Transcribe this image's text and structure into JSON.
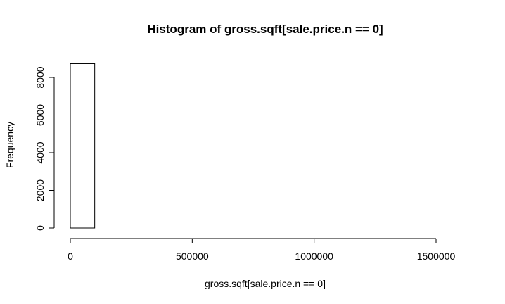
{
  "chart_data": {
    "type": "bar",
    "title": "Histogram of gross.sqft[sale.price.n == 0]",
    "xlabel": "gross.sqft[sale.price.n == 0]",
    "ylabel": "Frequency",
    "xlim": [
      0,
      1600000
    ],
    "ylim": [
      0,
      8000
    ],
    "x_ticks": [
      0,
      500000,
      1000000,
      1500000
    ],
    "x_tick_labels": [
      "0",
      "500000",
      "1000000",
      "1500000"
    ],
    "y_ticks": [
      0,
      2000,
      4000,
      6000,
      8000
    ],
    "y_tick_labels": [
      "0",
      "2000",
      "4000",
      "6000",
      "8000"
    ],
    "bins": [
      {
        "x0": 0,
        "x1": 100000,
        "value": 8730
      },
      {
        "x0": 100000,
        "x1": 200000,
        "value": 0
      },
      {
        "x0": 200000,
        "x1": 300000,
        "value": 0
      },
      {
        "x0": 300000,
        "x1": 400000,
        "value": 0
      },
      {
        "x0": 400000,
        "x1": 500000,
        "value": 0
      },
      {
        "x0": 500000,
        "x1": 600000,
        "value": 0
      },
      {
        "x0": 600000,
        "x1": 700000,
        "value": 0
      },
      {
        "x0": 700000,
        "x1": 800000,
        "value": 0
      },
      {
        "x0": 800000,
        "x1": 900000,
        "value": 0
      },
      {
        "x0": 900000,
        "x1": 1000000,
        "value": 0
      },
      {
        "x0": 1000000,
        "x1": 1100000,
        "value": 0
      },
      {
        "x0": 1100000,
        "x1": 1200000,
        "value": 0
      },
      {
        "x0": 1200000,
        "x1": 1300000,
        "value": 0
      },
      {
        "x0": 1300000,
        "x1": 1400000,
        "value": 0
      },
      {
        "x0": 1400000,
        "x1": 1500000,
        "value": 0
      },
      {
        "x0": 1500000,
        "x1": 1600000,
        "value": 0
      }
    ],
    "grid": false,
    "legend": "none"
  }
}
